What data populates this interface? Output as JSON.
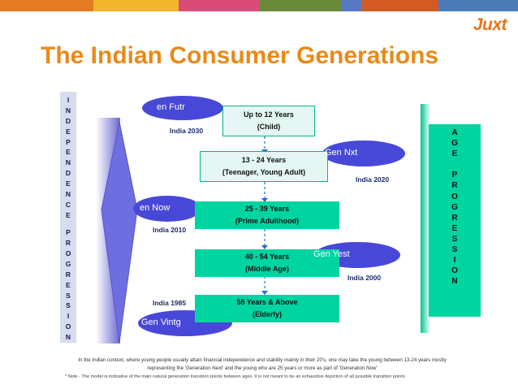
{
  "header": {
    "logo": "Juxt",
    "title": "The Indian Consumer Generations",
    "colors": [
      "#e47b22",
      "#f3b52a",
      "#d94c78",
      "#6a8a3a",
      "#5577c4",
      "#d35a22",
      "#4b7bb6"
    ]
  },
  "left_axis": {
    "letters": [
      "I",
      "N",
      "D",
      "E",
      "P",
      "E",
      "N",
      "D",
      "E",
      "N",
      "C",
      "E",
      "",
      "P",
      "R",
      "O",
      "G",
      "R",
      "E",
      "S",
      "S",
      "I",
      "O",
      "N"
    ]
  },
  "right_axis": {
    "letters": [
      "A",
      "G",
      "E",
      "",
      "P",
      "R",
      "O",
      "G",
      "R",
      "E",
      "S",
      "S",
      "I",
      "O",
      "N"
    ]
  },
  "stages": [
    {
      "age": "Up to 12 Years",
      "label": "(Child)"
    },
    {
      "age": "13 - 24 Years",
      "label": "(Teenager, Young Adult)"
    },
    {
      "age": "25 - 39 Years",
      "label": "(Prime Adulthood)"
    },
    {
      "age": "40 - 54 Years",
      "label": "(Middle Age)"
    },
    {
      "age": "55 Years & Above",
      "label": "(Elderly)"
    }
  ],
  "generations": [
    {
      "name": "Gen Futr",
      "shown": "en Futr",
      "year": "India 2030"
    },
    {
      "name": "Gen Nxt",
      "shown": "Gen Nxt",
      "year": "India 2020"
    },
    {
      "name": "Gen Now",
      "shown": "en Now",
      "year": "India 2010"
    },
    {
      "name": "Gen Yest",
      "shown": "Gen Yest",
      "year": "India 2000"
    },
    {
      "name": "Gen Vintg",
      "shown": "Gen Vintg",
      "year": "India 1985"
    }
  ],
  "note": "In the Indian context, where young people usually attain financial independence and stability mainly in their 20's, one may take the young between 13-24 years mostly representing the 'Generation Next' and the young who are 25 years or more as part of 'Generation Now'",
  "footnote": "* Note - The model is indicative of the main natural generation transition points between ages. It is not meant to be an exhaustive depiction of all possible transition points"
}
